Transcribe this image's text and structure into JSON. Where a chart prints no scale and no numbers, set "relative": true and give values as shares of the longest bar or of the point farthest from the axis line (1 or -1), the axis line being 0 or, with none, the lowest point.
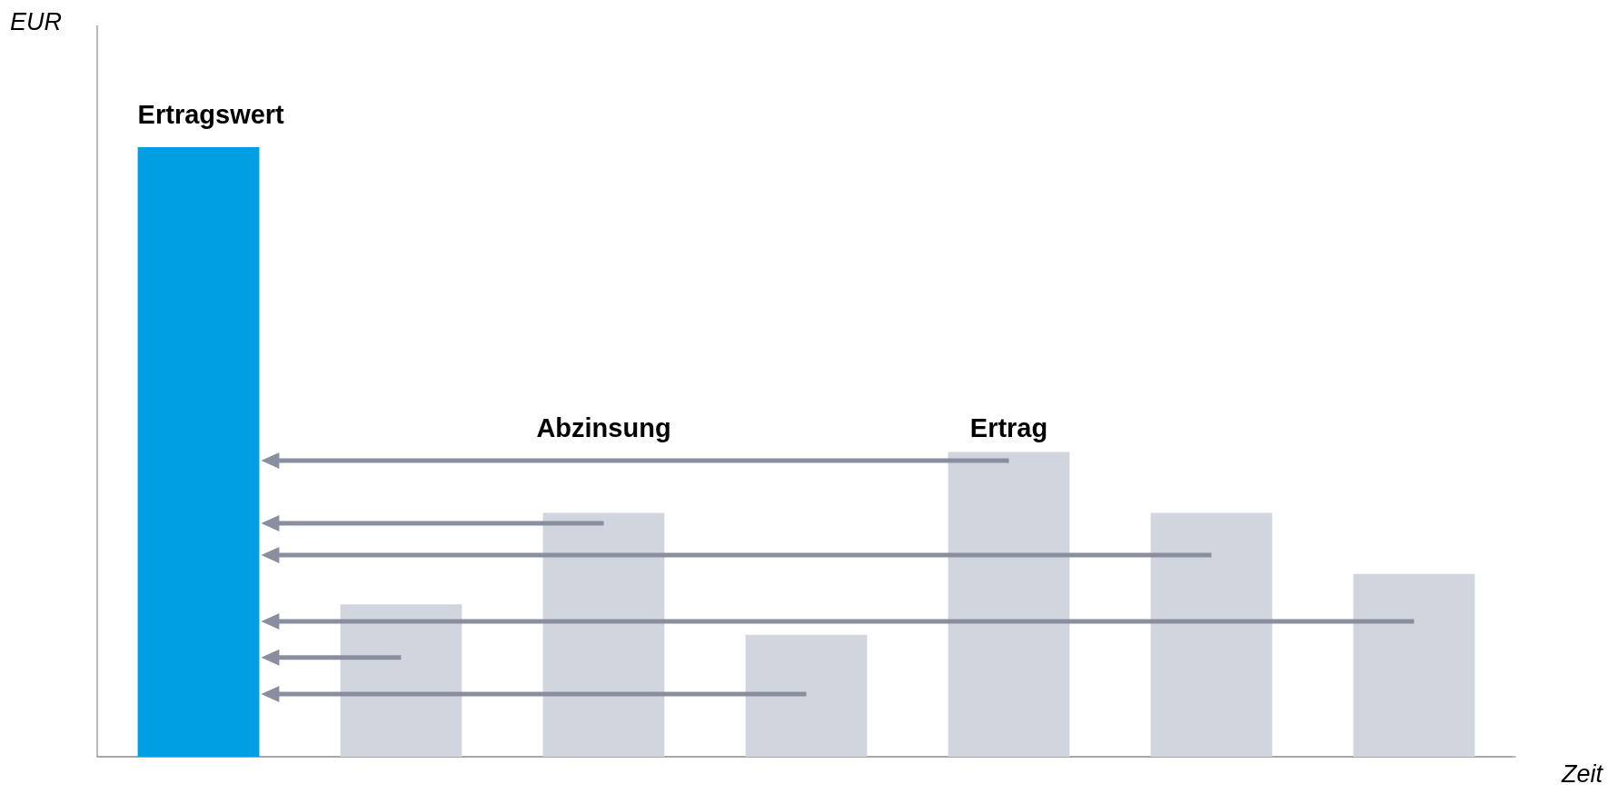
{
  "chart_data": {
    "type": "bar",
    "relative": true,
    "xlabel": "Zeit",
    "ylabel": "EUR",
    "categories": [
      null,
      null,
      null,
      null,
      null,
      null,
      null
    ],
    "values": [
      1,
      0.25,
      0.4,
      0.2,
      0.5,
      0.4,
      0.3
    ],
    "colors": [
      "#009fe3",
      "#d1d5dd",
      "#d1d5dd",
      "#d1d5dd",
      "#d1d5dd",
      "#d1d5dd",
      "#d1d5dd"
    ],
    "annotations": [
      "Ertragswert",
      "Abzinsung",
      "Ertrag"
    ],
    "grid": false
  }
}
